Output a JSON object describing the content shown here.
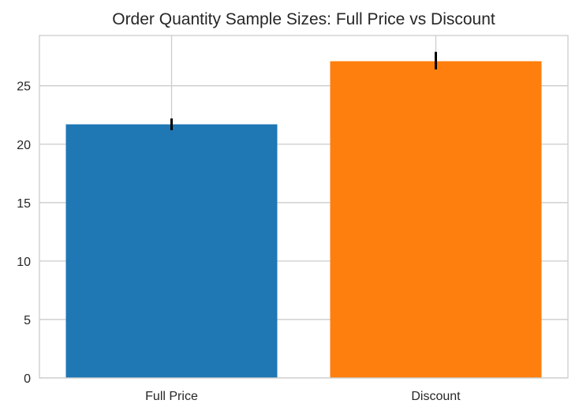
{
  "chart_data": {
    "type": "bar",
    "title": "Order Quantity Sample Sizes: Full Price vs Discount",
    "xlabel": "",
    "ylabel": "",
    "categories": [
      "Full Price",
      "Discount"
    ],
    "values": [
      21.7,
      27.1
    ],
    "error_bars": [
      {
        "low": 21.2,
        "high": 22.2
      },
      {
        "low": 26.4,
        "high": 27.9
      }
    ],
    "colors": [
      "#1f77b4",
      "#ff7f0e"
    ],
    "error_bar_color": "#000000",
    "ylim": [
      0,
      29.3
    ],
    "yticks": [
      0,
      5,
      10,
      15,
      20,
      25
    ],
    "ytick_labels": [
      "0",
      "5",
      "10",
      "15",
      "20",
      "25"
    ],
    "grid": true,
    "grid_color": "#cccccc",
    "legend": false
  }
}
